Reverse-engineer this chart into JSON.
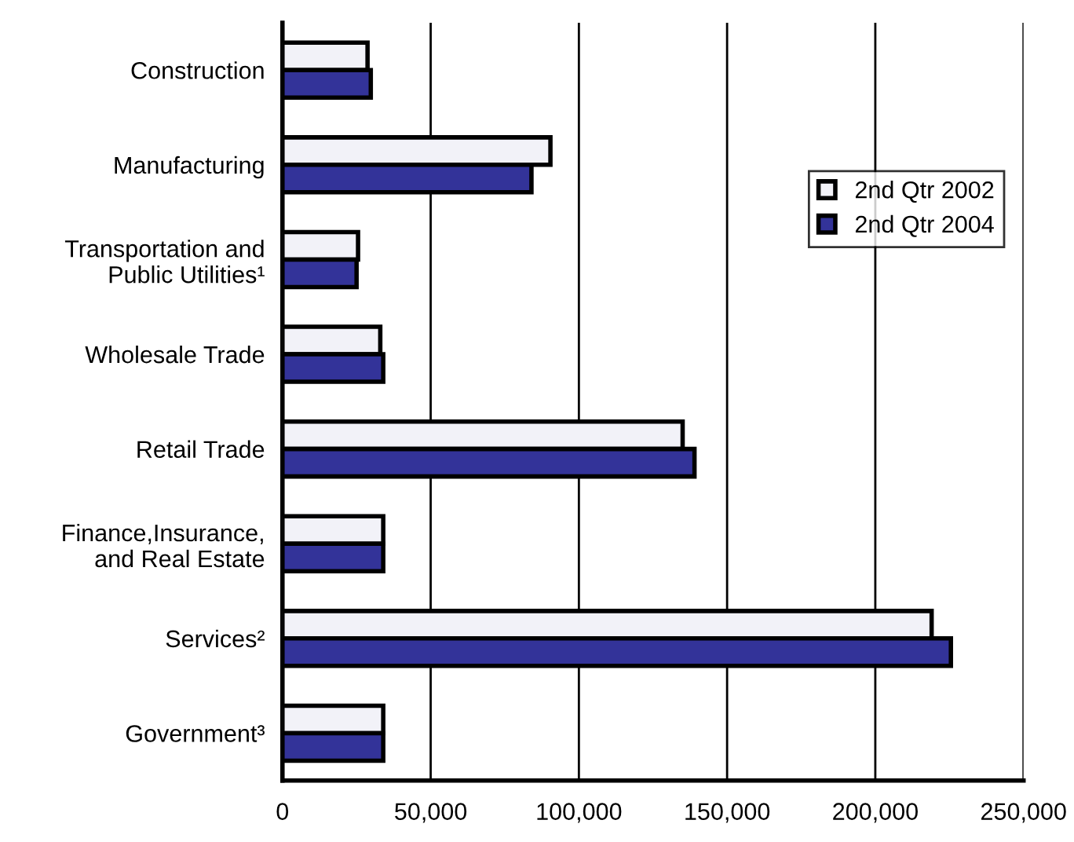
{
  "chart_data": {
    "type": "bar",
    "orientation": "horizontal",
    "categories": [
      "Construction",
      "Manufacturing",
      "Transportation and\nPublic Utilities¹",
      "Wholesale Trade",
      "Retail Trade",
      "Finance,Insurance,\nand Real Estate",
      "Services²",
      "Government³"
    ],
    "series": [
      {
        "name": "2nd Qtr 2002",
        "color": "#f2f2f8",
        "values": [
          28700,
          90400,
          25500,
          33000,
          135000,
          34000,
          219000,
          34000
        ]
      },
      {
        "name": "2nd Qtr 2004",
        "color": "#333399",
        "values": [
          29800,
          84000,
          25000,
          34000,
          139000,
          34000,
          225500,
          34000
        ]
      }
    ],
    "xlim": [
      0,
      250000
    ],
    "xticks": [
      {
        "value": 0,
        "label": "0"
      },
      {
        "value": 50000,
        "label": "50,000"
      },
      {
        "value": 100000,
        "label": "100,000"
      },
      {
        "value": 150000,
        "label": "150,000"
      },
      {
        "value": 200000,
        "label": "200,000"
      },
      {
        "value": 250000,
        "label": "250,000"
      }
    ],
    "grid": "x",
    "legend": "top right"
  }
}
